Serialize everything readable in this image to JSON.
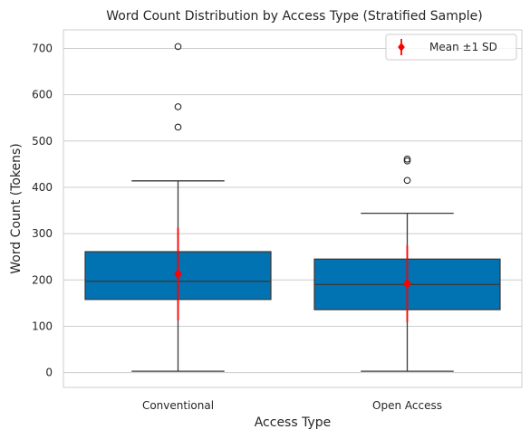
{
  "chart_data": {
    "type": "box",
    "title": "Word Count Distribution by Access Type (Stratified Sample)",
    "xlabel": "Access Type",
    "ylabel": "Word Count (Tokens)",
    "ylim": [
      -32,
      740
    ],
    "yticks": [
      0,
      100,
      200,
      300,
      400,
      500,
      600,
      700
    ],
    "grid": "horizontal",
    "legend": {
      "position": "top-right",
      "entries": [
        "Mean ±1 SD"
      ]
    },
    "colors": {
      "box": "#0173b2",
      "mean": "#ff0000",
      "line": "#3a3a3a",
      "grid": "#cccccc",
      "frame": "#cccccc"
    },
    "categories": [
      "Conventional",
      "Open Access"
    ],
    "boxes": [
      {
        "category": "Conventional",
        "whisker_low": 3,
        "q1": 158,
        "median": 197,
        "q3": 261,
        "whisker_high": 414,
        "outliers": [
          530,
          574,
          704
        ],
        "mean": 213,
        "sd": 100
      },
      {
        "category": "Open Access",
        "whisker_low": 3,
        "q1": 136,
        "median": 190,
        "q3": 245,
        "whisker_high": 344,
        "outliers": [
          415,
          457,
          461
        ],
        "mean": 192,
        "sd": 83
      }
    ]
  }
}
